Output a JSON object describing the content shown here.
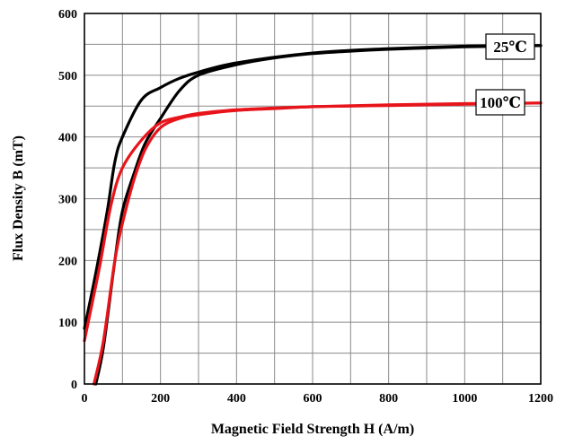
{
  "chart_data": {
    "type": "line",
    "title": "",
    "xlabel": "Magnetic Field Strength H (A/m)",
    "ylabel": "Flux Density B (mT)",
    "xlim": [
      0,
      1200
    ],
    "ylim": [
      0,
      600
    ],
    "xticks": [
      "0",
      "200",
      "400",
      "600",
      "800",
      "1000",
      "1200"
    ],
    "yticks": [
      "0",
      "100",
      "200",
      "300",
      "400",
      "500",
      "600"
    ],
    "grid": true,
    "legend": "inline labels at right end of curves",
    "colors": {
      "25℃": "#000000",
      "100℃": "#e8141b"
    },
    "series": [
      {
        "name": "25℃",
        "color": "#000000",
        "ascending": [
          [
            30,
            0
          ],
          [
            50,
            60
          ],
          [
            80,
            200
          ],
          [
            100,
            280
          ],
          [
            130,
            340
          ],
          [
            160,
            390
          ],
          [
            200,
            430
          ],
          [
            250,
            475
          ],
          [
            300,
            500
          ],
          [
            400,
            517
          ],
          [
            500,
            528
          ],
          [
            600,
            535
          ],
          [
            700,
            539
          ],
          [
            800,
            542
          ],
          [
            900,
            544
          ],
          [
            1000,
            546
          ],
          [
            1200,
            548
          ]
        ],
        "descending": [
          [
            1200,
            548
          ],
          [
            1000,
            547
          ],
          [
            800,
            543
          ],
          [
            600,
            536
          ],
          [
            400,
            520
          ],
          [
            300,
            505
          ],
          [
            250,
            495
          ],
          [
            200,
            480
          ],
          [
            150,
            460
          ],
          [
            100,
            400
          ],
          [
            80,
            360
          ],
          [
            60,
            280
          ],
          [
            30,
            180
          ],
          [
            0,
            90
          ]
        ]
      },
      {
        "name": "100℃",
        "color": "#e8141b",
        "ascending": [
          [
            25,
            0
          ],
          [
            50,
            70
          ],
          [
            80,
            200
          ],
          [
            100,
            260
          ],
          [
            130,
            330
          ],
          [
            160,
            380
          ],
          [
            200,
            415
          ],
          [
            250,
            430
          ],
          [
            300,
            436
          ],
          [
            400,
            443
          ],
          [
            500,
            446
          ],
          [
            600,
            449
          ],
          [
            700,
            450
          ],
          [
            800,
            451
          ],
          [
            900,
            452
          ],
          [
            1000,
            453
          ],
          [
            1200,
            455
          ]
        ],
        "descending": [
          [
            1200,
            455
          ],
          [
            1000,
            454
          ],
          [
            800,
            452
          ],
          [
            600,
            449
          ],
          [
            400,
            444
          ],
          [
            300,
            438
          ],
          [
            250,
            432
          ],
          [
            200,
            423
          ],
          [
            150,
            395
          ],
          [
            100,
            350
          ],
          [
            70,
            290
          ],
          [
            40,
            190
          ],
          [
            20,
            130
          ],
          [
            0,
            70
          ]
        ]
      }
    ]
  }
}
